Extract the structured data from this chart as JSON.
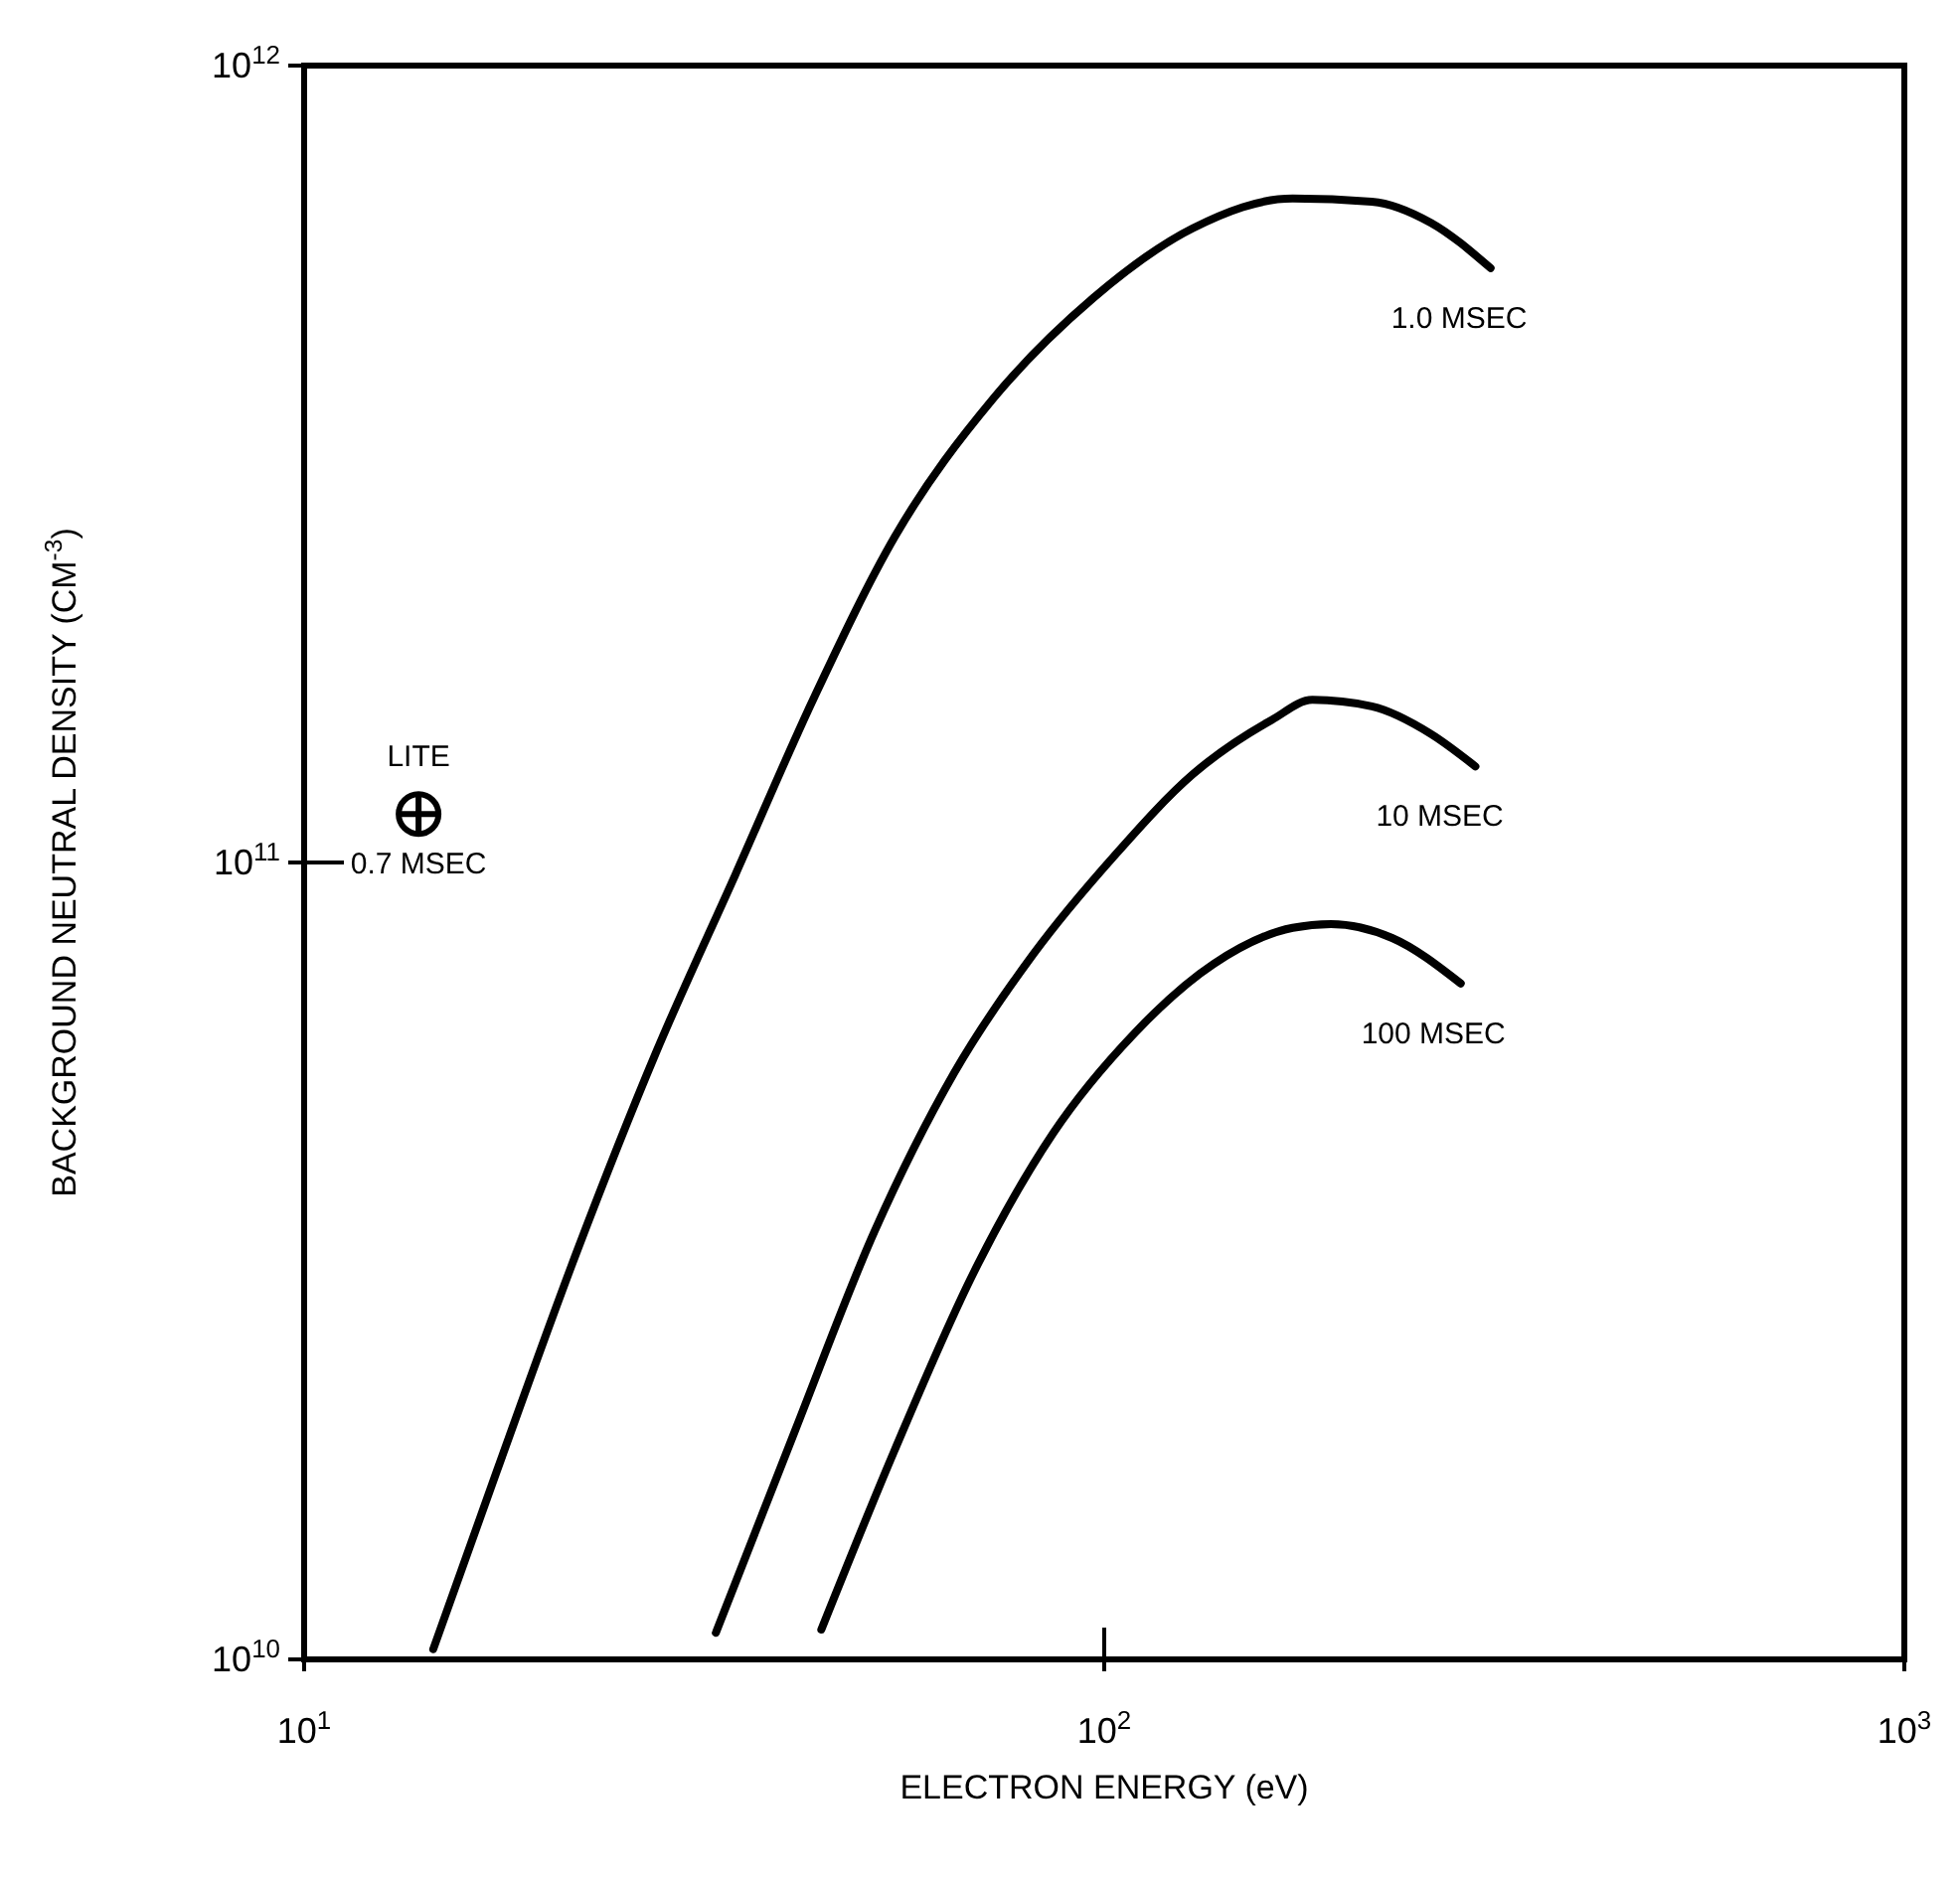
{
  "chart_data": {
    "type": "line",
    "xlabel": "ELECTRON ENERGY (eV)",
    "ylabel": "BACKGROUND NEUTRAL DENSITY (CM$^{-3}$)",
    "log": "xy",
    "grid": false,
    "legend": false,
    "line_style": "solid",
    "xlim": [
      10,
      1000
    ],
    "ylim": [
      10000000000.0,
      1000000000000.0
    ],
    "xticks": [
      {
        "value": 10,
        "label": "10$^{1}$"
      },
      {
        "value": 100,
        "label": "10$^{2}$"
      },
      {
        "value": 1000,
        "label": "10$^{3}$"
      }
    ],
    "yticks": [
      {
        "value": 10000000000.0,
        "label": "10$^{10}$"
      },
      {
        "value": 100000000000.0,
        "label": "10$^{11}$"
      },
      {
        "value": 1000000000000.0,
        "label": "10$^{12}$"
      }
    ],
    "series": [
      {
        "name": "1.0 MSEC",
        "color": "#000000",
        "x": [
          14.5,
          17.4,
          21.9,
          27.5,
          34.6,
          43.5,
          54.7,
          72.8,
          96.9,
          129,
          172,
          216,
          256,
          304
        ],
        "values": [
          10300000000.0,
          17200000000.0,
          32400000000.0,
          57600000000.0,
          96600000000.0,
          162000000000.0,
          256000000000.0,
          383000000000.0,
          511000000000.0,
          625000000000.0,
          681000000000.0,
          675000000000.0,
          635000000000.0,
          557000000000.0
        ]
      },
      {
        "name": "10 MSEC",
        "color": "#000000",
        "x": [
          32.7,
          41.1,
          51.6,
          64.9,
          81.6,
          103,
          129,
          162,
          182,
          216,
          256,
          291
        ],
        "values": [
          10800000000.0,
          19400000000.0,
          34400000000.0,
          54400000000.0,
          76800000000.0,
          102000000000.0,
          129000000000.0,
          151000000000.0,
          160000000000.0,
          157000000000.0,
          145000000000.0,
          132000000000.0
        ]
      },
      {
        "name": "100 MSEC",
        "color": "#000000",
        "x": [
          44.3,
          54.7,
          68.7,
          86.4,
          109,
          137,
          172,
          192,
          229,
          279
        ],
        "values": [
          10900000000.0,
          18300000000.0,
          30600000000.0,
          45800000000.0,
          61000000000.0,
          74600000000.0,
          82800000000.0,
          83700000000.0,
          80400000000.0,
          70500000000.0
        ]
      },
      {
        "name": "LITE",
        "type": "scatter",
        "marker": "circle",
        "color": "#000000",
        "x": [
          13.9
        ],
        "values": [
          115000000000.0
        ]
      }
    ],
    "annotations": [
      {
        "text": "0.7 MSEC",
        "x": 13.9,
        "y": 115000000000.0
      }
    ]
  }
}
